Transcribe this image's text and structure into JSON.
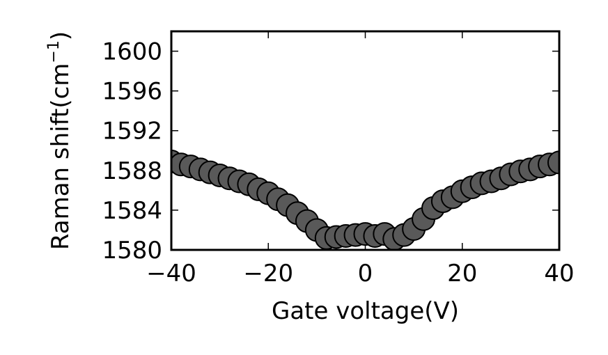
{
  "chart_data": {
    "type": "scatter",
    "title": "",
    "xlabel": "Gate voltage(V)",
    "ylabel": {
      "text": "Raman shift(cm",
      "superscript": "−1",
      "close": ")"
    },
    "xlim": [
      -40,
      40
    ],
    "ylim": [
      1580,
      1602
    ],
    "xticks": [
      -40,
      -20,
      0,
      20,
      40
    ],
    "xtick_labels": [
      "−40",
      "−20",
      "0",
      "20",
      "40"
    ],
    "yticks": [
      1580,
      1584,
      1588,
      1592,
      1596,
      1600
    ],
    "ytick_labels": [
      "1580",
      "1584",
      "1588",
      "1592",
      "1596",
      "1600"
    ],
    "grid": false,
    "marker_color": "#595959",
    "marker_edge_color": "#000000",
    "series": [
      {
        "x": [
          -40,
          -38,
          -36,
          -34,
          -32,
          -30,
          -28,
          -26,
          -24,
          -22,
          -20,
          -18,
          -16,
          -14,
          -12,
          -10,
          -8,
          -6,
          -4,
          -2,
          0,
          2,
          4,
          6,
          8,
          10,
          12,
          14,
          16,
          18,
          20,
          22,
          24,
          26,
          28,
          30,
          32,
          34,
          36,
          38,
          40
        ],
        "y": [
          1588.9,
          1588.6,
          1588.4,
          1588.1,
          1587.8,
          1587.5,
          1587.2,
          1586.9,
          1586.6,
          1586.1,
          1585.7,
          1585.1,
          1584.5,
          1583.7,
          1582.9,
          1582.0,
          1581.2,
          1581.3,
          1581.4,
          1581.5,
          1581.6,
          1581.4,
          1581.6,
          1581.1,
          1581.5,
          1582.1,
          1583.1,
          1584.2,
          1584.9,
          1585.3,
          1585.9,
          1586.3,
          1586.7,
          1586.9,
          1587.2,
          1587.6,
          1587.9,
          1588.1,
          1588.4,
          1588.6,
          1588.8
        ]
      }
    ]
  }
}
